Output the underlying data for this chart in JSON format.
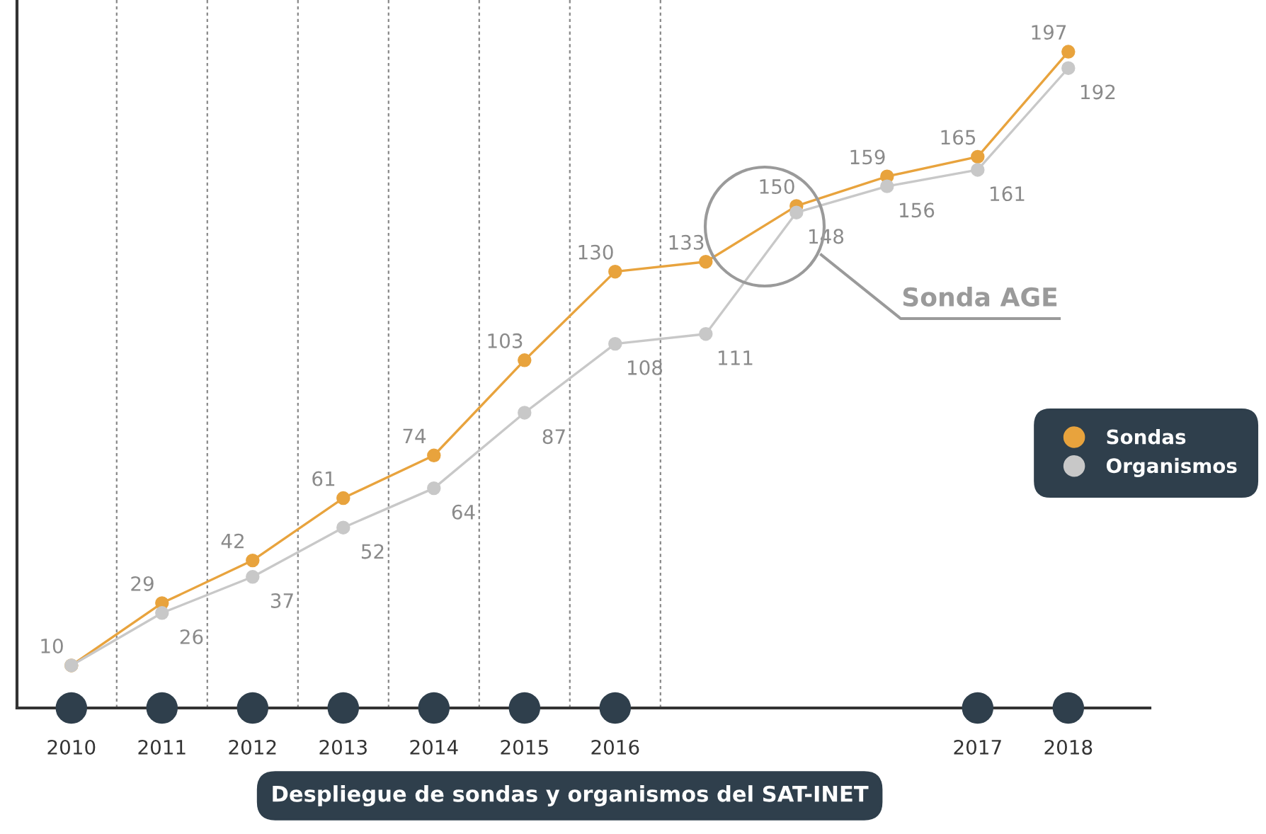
{
  "chart_data": {
    "type": "line",
    "title": "Despliegue de sondas y organismos del SAT-INET",
    "categories": [
      "2010",
      "2011",
      "2012",
      "2013",
      "2014",
      "2015",
      "2016",
      null,
      null,
      null,
      "2017",
      "2018"
    ],
    "series": [
      {
        "name": "Sondas",
        "color": "#e8a33d",
        "values": [
          10,
          29,
          42,
          61,
          74,
          103,
          130,
          133,
          150,
          159,
          165,
          197
        ],
        "value_labels": [
          "10",
          "29",
          "42",
          "61",
          "74",
          "103",
          "130",
          "133",
          "150",
          "159",
          "165",
          "197"
        ]
      },
      {
        "name": "Organismos",
        "color": "#c8c8c8",
        "values": [
          10,
          26,
          37,
          52,
          64,
          87,
          108,
          111,
          148,
          156,
          161,
          192
        ],
        "value_labels": [
          null,
          "26",
          "37",
          "52",
          "64",
          "87",
          "108",
          "111",
          "148",
          "156",
          "161",
          "192"
        ]
      }
    ],
    "tick_labels": "x",
    "annotations": [
      "Sonda AGE"
    ],
    "legend": "right",
    "marker": "circle",
    "line_style": "solid"
  }
}
